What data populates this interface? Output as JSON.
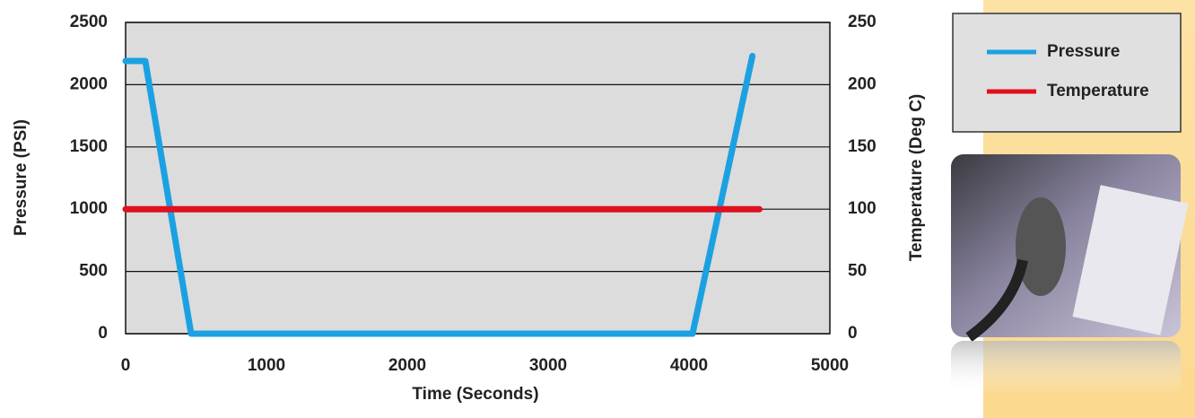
{
  "chart_data": {
    "type": "line",
    "xlabel": "Time (Seconds)",
    "ylabel": "Pressure (PSI)",
    "y2label": "Temperature (Deg C)",
    "xlim": [
      0,
      5000
    ],
    "xticks": [
      0,
      1000,
      2000,
      3000,
      4000,
      5000
    ],
    "ylim": [
      0,
      2500
    ],
    "yticks": [
      0,
      500,
      1000,
      1500,
      2000,
      2500
    ],
    "y2lim": [
      0,
      250
    ],
    "y2ticks": [
      0,
      50,
      100,
      150,
      200,
      250
    ],
    "grid": true,
    "series": [
      {
        "name": "Pressure",
        "color": "#1ba1e2",
        "x": [
          0,
          140,
          465,
          4025,
          4450
        ],
        "values": [
          2190,
          2190,
          0,
          0,
          2230
        ]
      },
      {
        "name": "Temperature",
        "color": "#e0101e",
        "axis": "y2",
        "x": [
          0,
          4500
        ],
        "values": [
          100,
          100
        ]
      }
    ]
  }
}
